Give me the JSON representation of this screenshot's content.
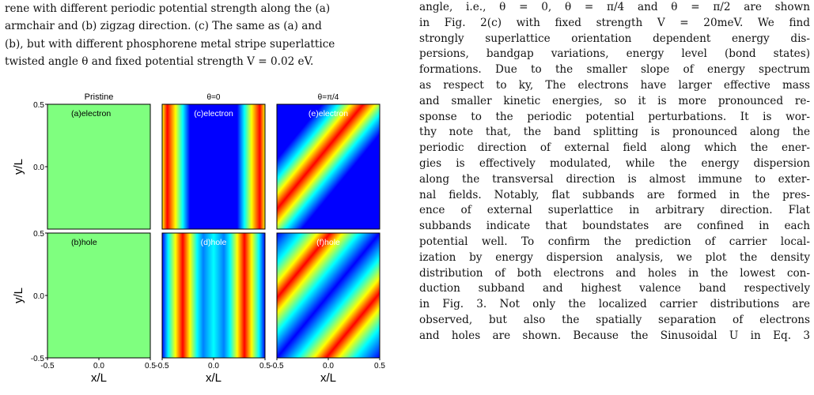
{
  "caption": {
    "lines": [
      "rene with different periodic potential strength along the (a)",
      "armchair and (b) zigzag direction. (c) The same as (a) and",
      "(b), but with different phosphorene metal stripe superlattice",
      "twisted angle θ and fixed potential strength V = 0.02 eV."
    ]
  },
  "body": {
    "lines": [
      "angle, i.e., θ = 0, θ = π/4 and θ = π/2 are shown",
      "in Fig. 2(c) with fixed strength V = 20meV. We find",
      "strongly superlattice orientation dependent energy dis-",
      "persions, bandgap variations, energy level (bond states)",
      "formations. Due to the smaller slope of energy spectrum",
      "as respect to ky, The electrons have larger effective mass",
      "and smaller kinetic energies, so it is more pronounced re-",
      "sponse to the periodic potential perturbations. It is wor-",
      "thy note that, the band splitting is pronounced along the",
      "periodic direction of external field along which the ener-",
      "gies is effectively modulated, while the energy dispersion",
      "along the transversal direction is almost immune to exter-",
      "nal fields. Notably, flat subbands are formed in the pres-",
      "ence of external superlattice in arbitrary direction. Flat",
      "subbands indicate that boundstates are confined in each",
      "potential well. To confirm the prediction of carrier local-",
      "ization by energy dispersion analysis, we plot the density",
      "distribution of both electrons and holes in the lowest con-",
      "duction subband and highest valence band respectively",
      "in Fig. 3. Not only the localized carrier distributions are",
      "observed, but also the spatially separation of electrons",
      "and holes are shown. Because the Sinusoidal U in Eq. 3"
    ],
    "link_color": "#1a3fd0"
  },
  "chart_data": {
    "type": "heatmap",
    "column_titles": [
      "Pristine",
      "θ=0",
      "θ=π/4"
    ],
    "xlabel": "x/L",
    "ylabel": "y/L",
    "xlim": [
      -0.5,
      0.5
    ],
    "ylim": [
      -0.5,
      0.5
    ],
    "x_ticks": [
      "-0.5",
      "0.0",
      "0.5"
    ],
    "y_ticks": [
      "-0.5",
      "0.0",
      "0.5"
    ],
    "colormap": [
      "#00007f",
      "#0000ff",
      "#007fff",
      "#00ffff",
      "#7fff7f",
      "#ffff00",
      "#ff7f00",
      "#ff0000",
      "#7f0000"
    ],
    "panels": [
      {
        "label": "(a)electron",
        "pattern": "uniform",
        "angle_deg": null
      },
      {
        "label": "(c)electron",
        "pattern": "stripes",
        "angle_deg": 0
      },
      {
        "label": "(e)electron",
        "pattern": "stripes",
        "angle_deg": 45
      },
      {
        "label": "(b)hole",
        "pattern": "uniform",
        "angle_deg": null
      },
      {
        "label": "(d)hole",
        "pattern": "stripes",
        "angle_deg": 0
      },
      {
        "label": "(f)hole",
        "pattern": "stripes",
        "angle_deg": 45
      }
    ]
  }
}
